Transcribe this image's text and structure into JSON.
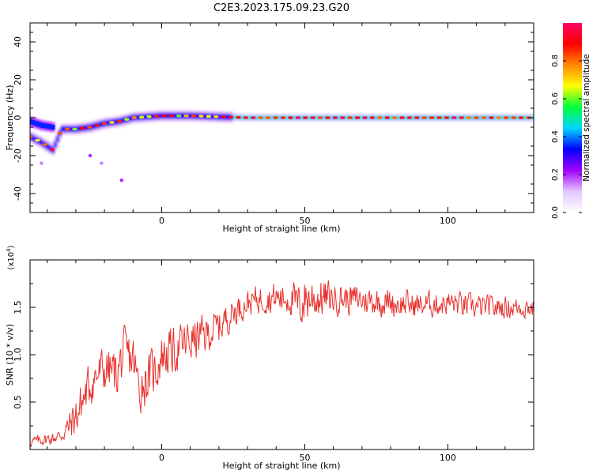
{
  "title": "C2E3.2023.175.09.23.G20",
  "colors": {
    "snr_line": "#e8322e",
    "axis": "#000000",
    "background": "#ffffff"
  },
  "chart_data": [
    {
      "type": "heatmap",
      "name": "spectrogram",
      "xlabel": "Height of straight line (km)",
      "ylabel": "Frequency (Hz)",
      "xlim": [
        -46,
        130
      ],
      "ylim": [
        -50,
        50
      ],
      "xticks": [
        0,
        50,
        100
      ],
      "yticks": [
        -40,
        -20,
        0,
        20,
        40
      ],
      "grid": false,
      "colorbar": {
        "label": "Normalized spectral amplitude",
        "range": [
          0,
          1
        ],
        "ticks": [
          0.0,
          0.2,
          0.4,
          0.6,
          0.8
        ],
        "colormap": [
          "#ffffff",
          "#e3c7ff",
          "#a200ff",
          "#0000ff",
          "#00d5ff",
          "#00ff3a",
          "#ffff00",
          "#ff8800",
          "#ff0000",
          "#ff0066"
        ]
      },
      "ridge": {
        "x": [
          -46,
          -42,
          -38,
          -35,
          -30,
          -25,
          -20,
          -15,
          -10,
          -5,
          0,
          10,
          20,
          30,
          50,
          80,
          100,
          130
        ],
        "y": [
          -10,
          -13,
          -17,
          -6,
          -6,
          -5,
          -3,
          -2,
          0,
          0.5,
          1,
          1,
          0.5,
          0,
          0,
          0,
          0,
          0
        ]
      },
      "ridge_upper": {
        "x": [
          -46,
          -42,
          -38
        ],
        "y": [
          -2,
          -4,
          -5
        ]
      },
      "scatter_points": [
        {
          "x": -42,
          "y": -24,
          "level": 0.15
        },
        {
          "x": -25,
          "y": -20,
          "level": 0.2
        },
        {
          "x": -21,
          "y": -24,
          "level": 0.15
        },
        {
          "x": -14,
          "y": -33,
          "level": 0.2
        }
      ]
    },
    {
      "type": "line",
      "name": "snr",
      "xlabel": "Height of straight line (km)",
      "ylabel": "SNR (10 * v/v)",
      "multiplier_label": "(x10",
      "multiplier_exp": "4",
      "multiplier_close": ")",
      "xlim": [
        -46,
        130
      ],
      "ylim": [
        0,
        2.0
      ],
      "xticks": [
        0,
        50,
        100
      ],
      "yticks": [
        0.5,
        1.0,
        1.5
      ],
      "ytick_labels": [
        "0.5",
        "1.0",
        "1.5"
      ],
      "grid": false,
      "series": [
        {
          "color": "#e8322e",
          "x": [
            -46,
            -42,
            -38,
            -35,
            -33,
            -30,
            -27,
            -25,
            -22,
            -19,
            -16,
            -13,
            -10,
            -8,
            -5,
            -2,
            0,
            5,
            10,
            15,
            20,
            25,
            30,
            35,
            40,
            45,
            48,
            50,
            55,
            60,
            70,
            80,
            90,
            100,
            110,
            120,
            130
          ],
          "y": [
            0.08,
            0.1,
            0.12,
            0.15,
            0.22,
            0.35,
            0.55,
            0.7,
            0.8,
            0.85,
            0.8,
            1.0,
            0.95,
            0.65,
            0.75,
            0.85,
            1.0,
            1.05,
            1.15,
            1.2,
            1.3,
            1.45,
            1.55,
            1.6,
            1.6,
            1.6,
            1.5,
            1.6,
            1.6,
            1.6,
            1.58,
            1.55,
            1.52,
            1.55,
            1.5,
            1.5,
            1.5
          ]
        }
      ],
      "noise_amplitude": [
        [
          -46,
          0.06
        ],
        [
          -35,
          0.08
        ],
        [
          -30,
          0.25
        ],
        [
          -10,
          0.3
        ],
        [
          10,
          0.25
        ],
        [
          30,
          0.15
        ],
        [
          45,
          0.2
        ],
        [
          50,
          0.3
        ],
        [
          60,
          0.18
        ],
        [
          130,
          0.12
        ]
      ]
    }
  ]
}
